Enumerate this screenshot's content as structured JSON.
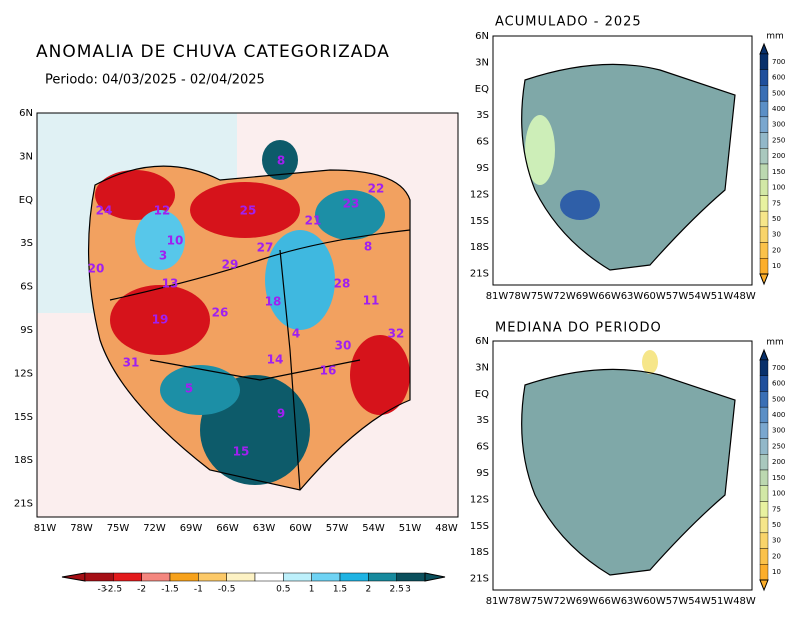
{
  "title": "ANOMALIA DE CHUVA CATEGORIZADA",
  "period": "Periodo: 04/03/2025 - 02/04/2025",
  "main_map": {
    "lat_labels": [
      "6N",
      "3N",
      "EQ",
      "3S",
      "6S",
      "9S",
      "12S",
      "15S",
      "18S",
      "21S"
    ],
    "lon_labels": [
      "81W",
      "78W",
      "75W",
      "72W",
      "69W",
      "66W",
      "63W",
      "60W",
      "57W",
      "54W",
      "51W",
      "48W"
    ],
    "basin_labels": [
      "8",
      "22",
      "24",
      "12",
      "25",
      "21",
      "23",
      "10",
      "8",
      "3",
      "20",
      "29",
      "27",
      "13",
      "28",
      "18",
      "11",
      "19",
      "26",
      "4",
      "32",
      "30",
      "14",
      "16",
      "31",
      "5",
      "9",
      "15"
    ],
    "colorbar_labels": [
      "-3",
      "-2.5",
      "-2",
      "-1.5",
      "-1",
      "-0.5",
      "0.5",
      "1",
      "1.5",
      "2",
      "2.5",
      "3"
    ]
  },
  "accumulated_map": {
    "title": "ACUMULADO - 2025",
    "lat_labels": [
      "6N",
      "3N",
      "EQ",
      "3S",
      "6S",
      "9S",
      "12S",
      "15S",
      "18S",
      "21S"
    ],
    "lon_labels": [
      "81W",
      "78W",
      "75W",
      "72W",
      "69W",
      "66W",
      "63W",
      "60W",
      "57W",
      "54W",
      "51W",
      "48W"
    ],
    "colorbar_unit": "mm",
    "colorbar_labels": [
      "700",
      "600",
      "500",
      "400",
      "300",
      "250",
      "200",
      "150",
      "100",
      "75",
      "50",
      "30",
      "20",
      "10"
    ]
  },
  "median_map": {
    "title": "MEDIANA DO PERIODO",
    "lat_labels": [
      "6N",
      "3N",
      "EQ",
      "3S",
      "6S",
      "9S",
      "12S",
      "15S",
      "18S",
      "21S"
    ],
    "lon_labels": [
      "81W",
      "78W",
      "75W",
      "72W",
      "69W",
      "66W",
      "63W",
      "60W",
      "57W",
      "54W",
      "51W",
      "48W"
    ],
    "colorbar_unit": "mm",
    "colorbar_labels": [
      "700",
      "600",
      "500",
      "400",
      "300",
      "250",
      "200",
      "150",
      "100",
      "75",
      "50",
      "30",
      "20",
      "10"
    ]
  }
}
